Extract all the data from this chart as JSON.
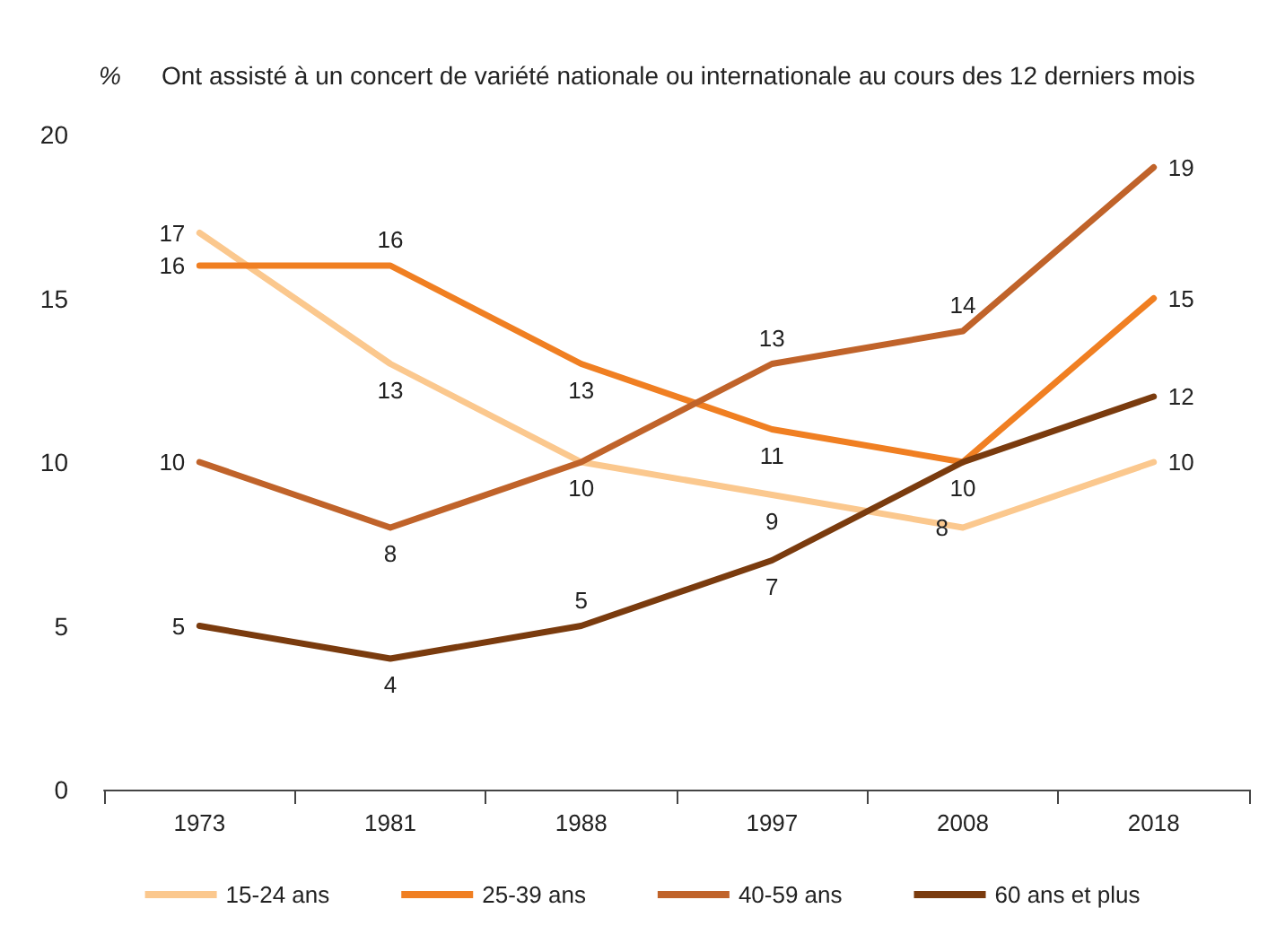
{
  "chart_data": {
    "type": "line",
    "title": "Ont assisté à un concert de variété nationale ou internationale au cours des 12 derniers mois",
    "ylabel": "%",
    "categories": [
      "1973",
      "1981",
      "1988",
      "1997",
      "2008",
      "2018"
    ],
    "series": [
      {
        "name": "15-24 ans",
        "color": "#fbc88e",
        "values": [
          17,
          13,
          10,
          9,
          8,
          10
        ],
        "value_labels": [
          "17",
          "13",
          "10",
          "9",
          "8",
          "10"
        ]
      },
      {
        "name": "25-39 ans",
        "color": "#f07f22",
        "values": [
          16,
          16,
          13,
          11,
          10,
          15
        ],
        "value_labels": [
          "16",
          "16",
          "13",
          "11",
          "10",
          "15"
        ]
      },
      {
        "name": "40-59 ans",
        "color": "#c0632a",
        "values": [
          10,
          8,
          10,
          13,
          14,
          19
        ],
        "value_labels": [
          "10",
          "8",
          null,
          "13",
          "14",
          "19"
        ]
      },
      {
        "name": "60 ans et plus",
        "color": "#7a3b0e",
        "values": [
          5,
          4,
          5,
          7,
          10,
          12
        ],
        "value_labels": [
          "5",
          "4",
          "5",
          "7",
          null,
          "12"
        ]
      }
    ],
    "ylim": [
      0,
      20
    ],
    "yticks": [
      0,
      5,
      10,
      15,
      20
    ],
    "grid": false,
    "legend": "bottom",
    "marker": "none",
    "line_style": "solid"
  }
}
